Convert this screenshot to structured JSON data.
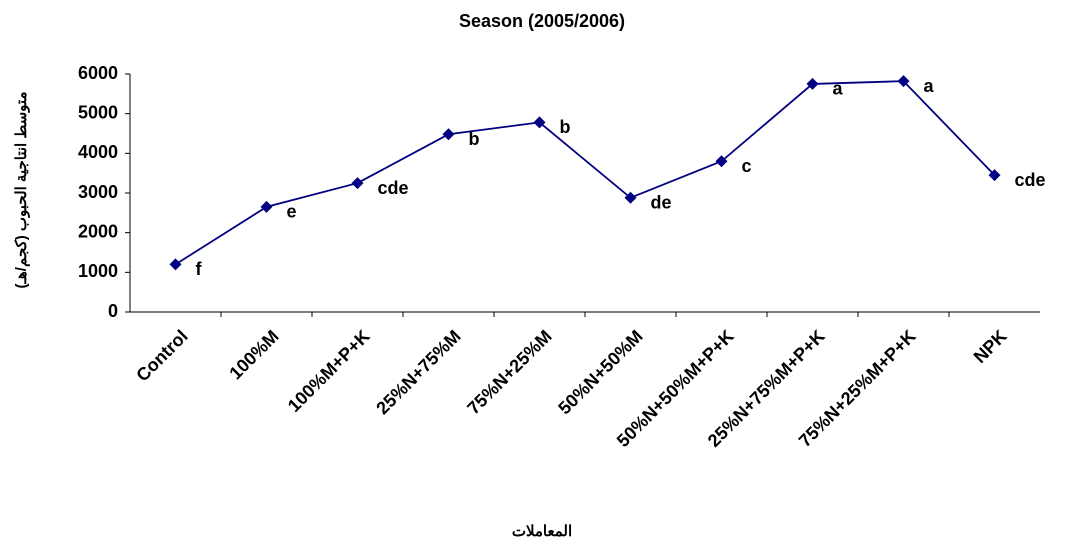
{
  "chart_data": {
    "type": "line",
    "title": "Season (2005/2006)",
    "x_label": "المعاملات",
    "y_label": "متوسط انتاجية الحبوب (كجم/هـ)",
    "categories": [
      "Control",
      "100%M",
      "100%M+P+K",
      "25%N+75%M",
      "75%N+25%M",
      "50%N+50%M",
      "50%N+50%M+P+K",
      "25%N+75%M+P+K",
      "75%N+25%M+P+K",
      "NPK"
    ],
    "series": [
      {
        "color": "#000080",
        "values": [
          1200,
          2650,
          3250,
          4480,
          4780,
          2880,
          3800,
          5750,
          5820,
          3450
        ],
        "letters": [
          "f",
          "e",
          "cde",
          "b",
          "b",
          "de",
          "c",
          "a",
          "a",
          "cde"
        ]
      }
    ],
    "ylim": [
      0,
      6000
    ],
    "yticks": [
      0,
      1000,
      2000,
      3000,
      4000,
      5000,
      6000
    ],
    "grid": false
  }
}
